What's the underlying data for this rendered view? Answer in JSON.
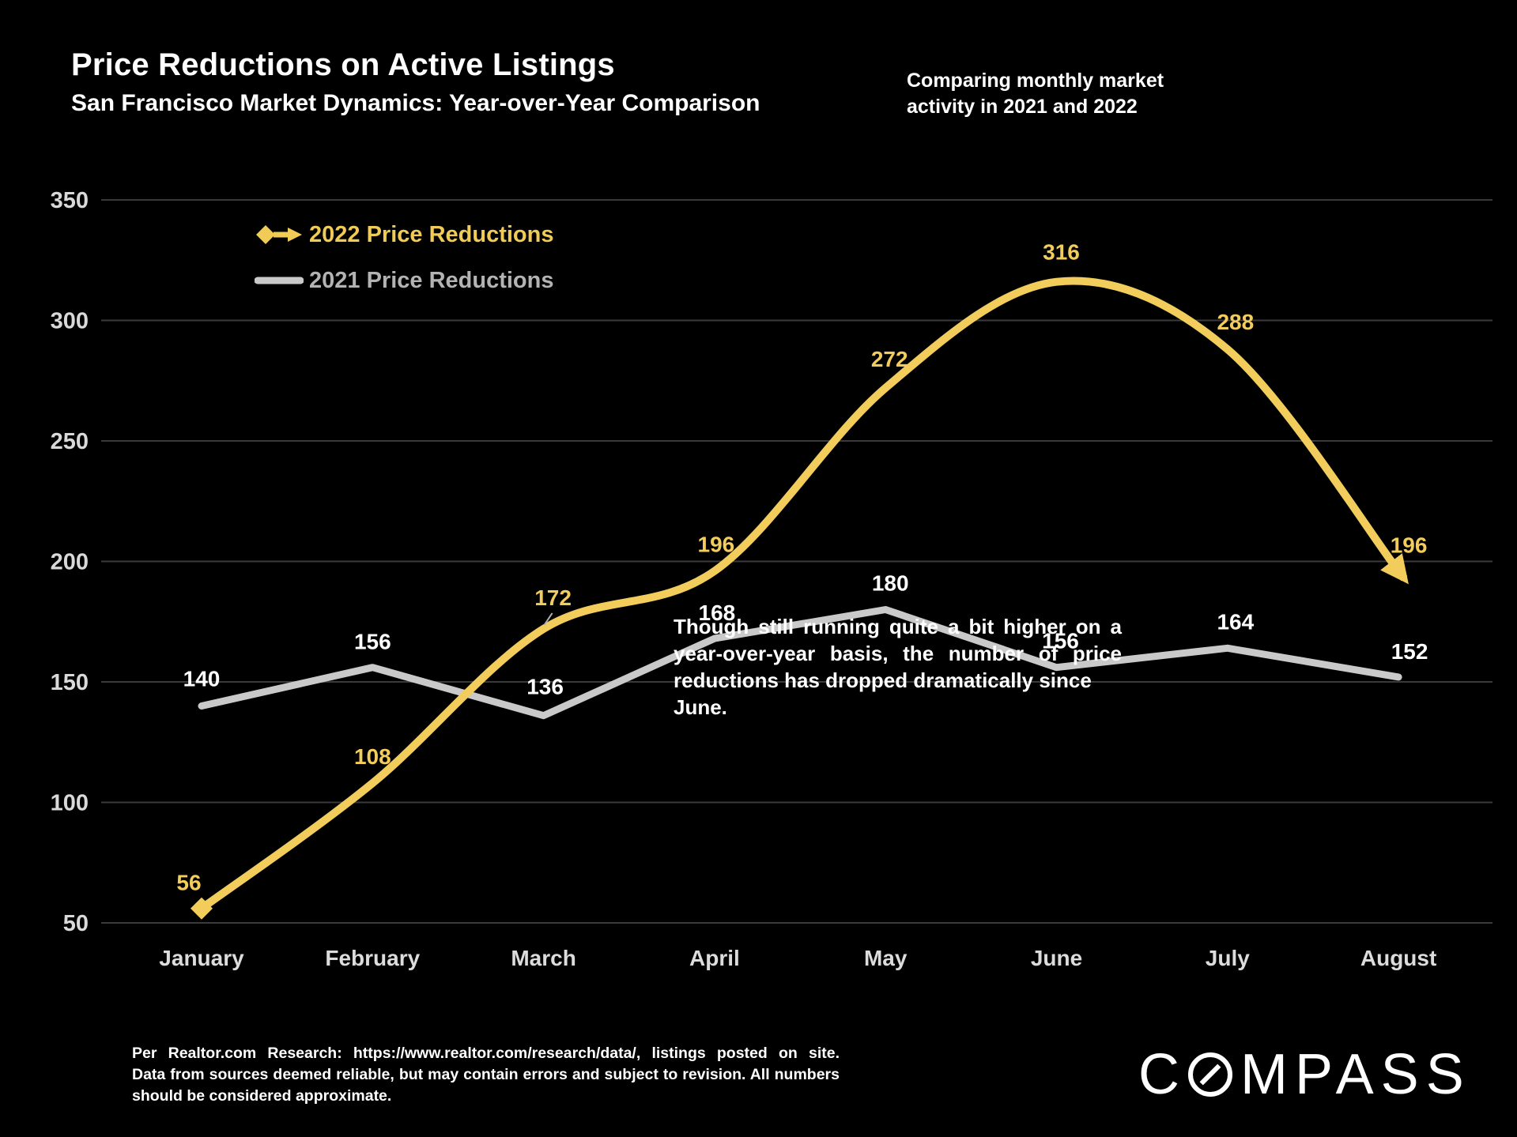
{
  "header": {
    "title": "Price Reductions on Active Listings",
    "subtitle": "San Francisco Market Dynamics: Year-over-Year Comparison",
    "note": {
      "line1": "Comparing monthly market",
      "line2": "activity in 2021 and 2022"
    }
  },
  "legend": {
    "items": [
      {
        "label": "2022 Price Reductions",
        "color": "#F0CB55",
        "marker": "diamond-arrow"
      },
      {
        "label": "2021 Price Reductions",
        "color": "#B3B3B3",
        "marker": "line"
      }
    ]
  },
  "chart_data": {
    "type": "line",
    "categories": [
      "January",
      "February",
      "March",
      "April",
      "May",
      "June",
      "July",
      "August"
    ],
    "series": [
      {
        "name": "2022 Price Reductions",
        "color": "#F2CD5C",
        "style": "smooth curve, diamond marker at start, arrowhead at end",
        "values": [
          56,
          108,
          172,
          196,
          272,
          316,
          288,
          196
        ]
      },
      {
        "name": "2021 Price Reductions",
        "color": "#C9C9C9",
        "style": "straight segments",
        "values": [
          140,
          156,
          136,
          168,
          180,
          156,
          164,
          152
        ]
      }
    ],
    "title": "Price Reductions on Active Listings",
    "xlabel": "",
    "ylabel": "",
    "yticks": [
      50,
      100,
      150,
      200,
      250,
      300,
      350
    ],
    "ylim": [
      50,
      350
    ],
    "grid": true,
    "legend_position": "upper-left inside plot"
  },
  "annotation": {
    "lines": [
      "Though still running quite a bit higher on a",
      "year-over-year basis, the number of price",
      "reductions has dropped dramatically since June."
    ]
  },
  "footer": {
    "lines": [
      "Per Realtor.com Research: https://www.realtor.com/research/data/, listings posted on site.",
      "Data from sources deemed reliable, but may contain errors and subject to revision. All numbers",
      "should be considered approximate."
    ]
  },
  "logo": {
    "name": "COMPASS",
    "before_o": "C",
    "after_o": "MPASS"
  },
  "colors": {
    "background": "#000000",
    "grid": "#3A3A3A",
    "axis_text": "#D9D9D9",
    "series_2022": "#F2CD5C",
    "series_2021": "#C9C9C9",
    "data_label_2021": "#FFFFFF"
  }
}
